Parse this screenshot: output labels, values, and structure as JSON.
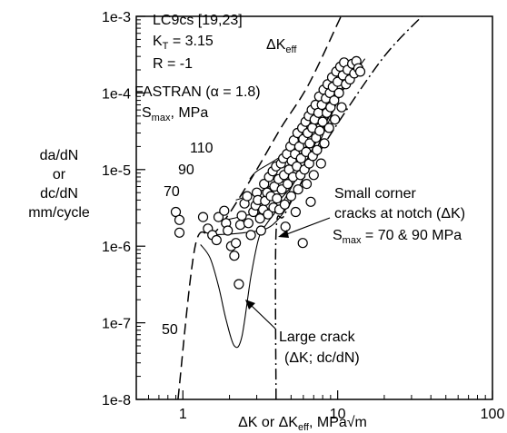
{
  "chart_data": {
    "type": "scatter",
    "x_scale": "log",
    "y_scale": "log",
    "xlim": [
      0.5,
      100
    ],
    "ylim": [
      1e-08,
      0.001
    ],
    "x_tick_labels": [
      "1",
      "10",
      "100"
    ],
    "x_tick_values": [
      1,
      10,
      100
    ],
    "y_tick_labels": [
      "1e-8",
      "1e-7",
      "1e-6",
      "1e-5",
      "1e-4",
      "1e-3"
    ],
    "y_tick_values": [
      1e-08,
      1e-07,
      1e-06,
      1e-05,
      0.0001,
      0.001
    ],
    "xlabel": {
      "a": "ΔK or ΔK",
      "sub": "eff",
      "b": ", MPa√m"
    },
    "ylabel": [
      "da/dN",
      "or",
      "dc/dN",
      "mm/cycle"
    ],
    "info": {
      "line1": "LC9cs [19,23]",
      "line2_a": "K",
      "line2_sub": "T",
      "line2_b": " = 3.15",
      "line3": "R = -1"
    },
    "model_label": "FASTRAN (α = 1.8)",
    "smax_label": {
      "a": "S",
      "sub": "max",
      "b": ", MPa"
    },
    "dkeff_label": {
      "a": "ΔK",
      "sub": "eff"
    },
    "curve_labels": [
      "110",
      "90",
      "70",
      "50"
    ],
    "small_crack_label": {
      "line1": "Small corner",
      "line2": "cracks at notch (ΔK)",
      "line3_a": "S",
      "line3_sub": "max",
      "line3_b": " = 70 & 90 MPa"
    },
    "large_crack_label": {
      "line1": "Large crack",
      "line2": "(ΔK; dc/dN)"
    },
    "series": [
      {
        "style": "open-circle",
        "points": [
          [
            0.9,
            2.8e-06
          ],
          [
            0.95,
            2.2e-06
          ],
          [
            0.95,
            1.5e-06
          ],
          [
            1.35,
            2.4e-06
          ],
          [
            1.45,
            1.7e-06
          ],
          [
            1.55,
            1.4e-06
          ],
          [
            1.65,
            1.2e-06
          ],
          [
            1.7,
            2.4e-06
          ],
          [
            1.85,
            2.9e-06
          ],
          [
            1.9,
            2e-06
          ],
          [
            1.95,
            1.6e-06
          ],
          [
            2.05,
            1e-06
          ],
          [
            2.15,
            7.5e-07
          ],
          [
            2.2,
            1.1e-06
          ],
          [
            2.35,
            1.9e-06
          ],
          [
            2.4,
            2.5e-06
          ],
          [
            2.5,
            3.6e-06
          ],
          [
            2.6,
            4.5e-06
          ],
          [
            2.3,
            3.2e-07
          ],
          [
            2.65,
            2e-06
          ],
          [
            2.75,
            1.4e-06
          ],
          [
            2.85,
            2.8e-06
          ],
          [
            2.95,
            3.4e-06
          ],
          [
            3.0,
            5e-06
          ],
          [
            3.05,
            4e-06
          ],
          [
            3.15,
            2.3e-06
          ],
          [
            3.2,
            1.6e-06
          ],
          [
            3.3,
            3e-06
          ],
          [
            3.35,
            6.5e-06
          ],
          [
            3.4,
            3.9e-06
          ],
          [
            3.5,
            5e-06
          ],
          [
            3.55,
            2.6e-06
          ],
          [
            3.6,
            8e-06
          ],
          [
            3.7,
            4.5e-06
          ],
          [
            3.8,
            9.5e-06
          ],
          [
            3.85,
            3.2e-06
          ],
          [
            3.9,
            6e-06
          ],
          [
            4.0,
            1.1e-05
          ],
          [
            4.05,
            4.2e-06
          ],
          [
            4.15,
            7.5e-06
          ],
          [
            4.2,
            3e-06
          ],
          [
            4.3,
            1.2e-05
          ],
          [
            4.35,
            5.5e-06
          ],
          [
            4.45,
            1.4e-05
          ],
          [
            4.5,
            8.5e-06
          ],
          [
            4.55,
            3.5e-06
          ],
          [
            4.6,
            1.8e-06
          ],
          [
            4.7,
            1.6e-05
          ],
          [
            4.75,
            6.5e-06
          ],
          [
            4.85,
            1e-05
          ],
          [
            4.95,
            2e-05
          ],
          [
            5.0,
            4.5e-06
          ],
          [
            5.05,
            1.3e-05
          ],
          [
            5.15,
            8e-06
          ],
          [
            5.2,
            2.4e-05
          ],
          [
            5.3,
            1.6e-05
          ],
          [
            5.35,
            2.8e-06
          ],
          [
            5.45,
            1.1e-05
          ],
          [
            5.5,
            3e-05
          ],
          [
            5.55,
            5.5e-06
          ],
          [
            5.65,
            2e-05
          ],
          [
            5.75,
            8.5e-06
          ],
          [
            5.8,
            1.4e-05
          ],
          [
            5.9,
            3.5e-05
          ],
          [
            5.95,
            1.1e-06
          ],
          [
            6.0,
            2.5e-05
          ],
          [
            6.1,
            1e-05
          ],
          [
            6.2,
            4.2e-05
          ],
          [
            6.25,
            1.7e-05
          ],
          [
            6.3,
            6.5e-06
          ],
          [
            6.4,
            3e-05
          ],
          [
            6.5,
            5e-05
          ],
          [
            6.55,
            1.2e-05
          ],
          [
            6.6,
            2.2e-05
          ],
          [
            6.7,
            3.8e-06
          ],
          [
            6.8,
            6e-05
          ],
          [
            6.85,
            3.5e-05
          ],
          [
            6.9,
            1.5e-05
          ],
          [
            7.0,
            8.5e-06
          ],
          [
            7.1,
            4.5e-05
          ],
          [
            7.2,
            7e-05
          ],
          [
            7.25,
            2.6e-05
          ],
          [
            7.35,
            1.8e-05
          ],
          [
            7.5,
            5.5e-05
          ],
          [
            7.6,
            9e-05
          ],
          [
            7.65,
            3.2e-05
          ],
          [
            7.8,
            1.2e-05
          ],
          [
            7.9,
            7e-05
          ],
          [
            8.0,
            4.2e-05
          ],
          [
            8.1,
            0.00011
          ],
          [
            8.2,
            2.2e-05
          ],
          [
            8.4,
            8.5e-05
          ],
          [
            8.5,
            5.5e-05
          ],
          [
            8.6,
            0.00013
          ],
          [
            8.8,
            3.5e-05
          ],
          [
            8.9,
            0.0001
          ],
          [
            9.0,
            6.5e-05
          ],
          [
            9.2,
            0.00016
          ],
          [
            9.3,
            0.00012
          ],
          [
            9.5,
            8e-05
          ],
          [
            9.6,
            4.5e-05
          ],
          [
            9.8,
            0.00019
          ],
          [
            10.0,
            0.00014
          ],
          [
            10.2,
            0.0001
          ],
          [
            10.4,
            0.00022
          ],
          [
            10.6,
            6.5e-05
          ],
          [
            10.8,
            0.00017
          ],
          [
            11.0,
            0.00025
          ],
          [
            11.3,
            0.00013
          ],
          [
            11.6,
            0.0002
          ],
          [
            12.0,
            0.00015
          ],
          [
            12.4,
            0.00024
          ],
          [
            12.8,
            0.00018
          ],
          [
            13.2,
            0.00026
          ],
          [
            13.6,
            0.00021
          ],
          [
            14.0,
            0.00019
          ]
        ]
      },
      {
        "name": "110",
        "style": "solid-thin",
        "points": [
          [
            2.7,
            7.5e-06
          ],
          [
            3.0,
            9.5e-06
          ],
          [
            4.0,
            1.35e-05
          ],
          [
            6.0,
            2.4e-05
          ],
          [
            9.0,
            6.5e-05
          ],
          [
            12.0,
            0.00015
          ],
          [
            15.0,
            0.00028
          ]
        ]
      },
      {
        "name": "90",
        "style": "solid-thin",
        "points": [
          [
            2.2,
            4e-06
          ],
          [
            3.0,
            5e-06
          ],
          [
            4.0,
            7e-06
          ],
          [
            6.0,
            1.8e-05
          ],
          [
            9.0,
            6e-05
          ],
          [
            13.0,
            0.0002
          ]
        ]
      },
      {
        "name": "70",
        "style": "solid-thin",
        "points": [
          [
            1.9,
            2.2e-06
          ],
          [
            2.5,
            2.5e-06
          ],
          [
            3.5,
            3e-06
          ],
          [
            5.0,
            6e-06
          ],
          [
            7.0,
            2e-05
          ],
          [
            10.0,
            9e-05
          ],
          [
            13.0,
            0.00024
          ]
        ]
      },
      {
        "name": "",
        "style": "solid-thin",
        "points": [
          [
            1.5,
            1.4e-06
          ],
          [
            2.5,
            1.5e-06
          ],
          [
            3.8,
            1.9e-06
          ],
          [
            5.5,
            5.5e-06
          ],
          [
            8.0,
            2.8e-05
          ],
          [
            11.0,
            0.00012
          ],
          [
            14.0,
            0.00026
          ]
        ]
      },
      {
        "name": "50",
        "style": "solid-thin",
        "points": [
          [
            1.3,
            1.05e-06
          ],
          [
            1.5,
            7e-07
          ],
          [
            1.7,
            3e-07
          ],
          [
            1.9,
            1.1e-07
          ],
          [
            2.15,
            5e-08
          ],
          [
            2.4,
            6.5e-08
          ],
          [
            2.75,
            4e-07
          ],
          [
            3.1,
            1.3e-06
          ],
          [
            3.5,
            2e-06
          ],
          [
            4.5,
            4e-06
          ],
          [
            6.5,
            1.5e-05
          ],
          [
            10.0,
            8e-05
          ],
          [
            14.0,
            0.00028
          ]
        ]
      },
      {
        "name": "ΔK eff",
        "style": "dashed",
        "points": [
          [
            0.93,
            1e-08
          ],
          [
            1.2,
            1e-06
          ],
          [
            1.55,
            1.4e-06
          ],
          [
            2.0,
            2.7e-06
          ],
          [
            3.0,
            1e-05
          ],
          [
            4.3,
            3.5e-05
          ],
          [
            6.5,
            0.00013
          ],
          [
            10.5,
            0.001
          ]
        ]
      },
      {
        "name": "Large crack",
        "style": "dash-dot",
        "points": [
          [
            4.0,
            1e-08
          ],
          [
            4.0,
            1.5e-06
          ],
          [
            4.5,
            2.5e-06
          ],
          [
            6.0,
            7.5e-06
          ],
          [
            10.0,
            4e-05
          ],
          [
            20.0,
            0.0003
          ],
          [
            35.0,
            0.001
          ]
        ]
      }
    ]
  }
}
